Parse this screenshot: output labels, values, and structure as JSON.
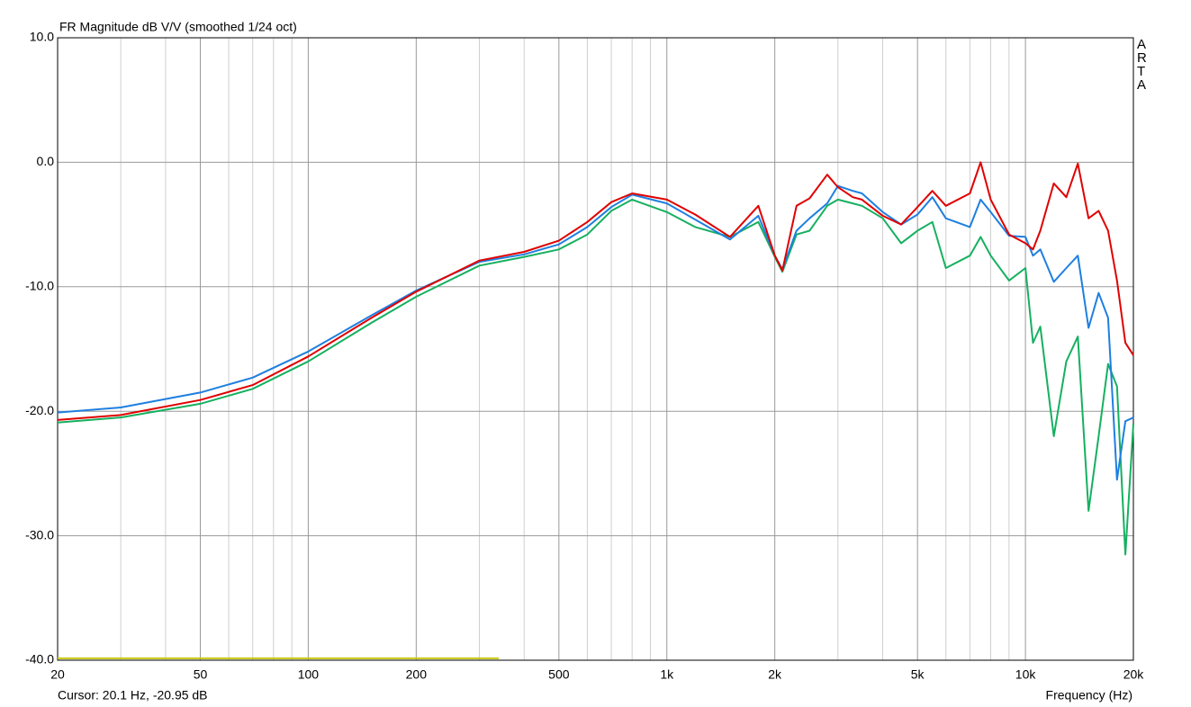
{
  "chart_data": {
    "type": "line",
    "title": "FR Magnitude dB V/V (smoothed 1/24 oct)",
    "watermark": "ARTA",
    "cursor_text": "Cursor: 20.1 Hz, -20.95 dB",
    "x_label": "Frequency (Hz)",
    "log_x": true,
    "grid": true,
    "xlim": [
      20,
      20000
    ],
    "ylim": [
      -40,
      10
    ],
    "xticks": [
      20,
      50,
      100,
      200,
      500,
      {
        "value": 1000,
        "label": "1k"
      },
      {
        "value": 2000,
        "label": "2k"
      },
      {
        "value": 5000,
        "label": "5k"
      },
      {
        "value": 10000,
        "label": "10k"
      },
      {
        "value": 20000,
        "label": "20k"
      }
    ],
    "xminorticks": [
      30,
      40,
      60,
      70,
      80,
      90,
      300,
      400,
      600,
      700,
      800,
      900,
      3000,
      4000,
      6000,
      7000,
      8000,
      9000
    ],
    "yticks": [
      {
        "value": 10,
        "label": "10.0"
      },
      {
        "value": 0,
        "label": "0.0"
      },
      {
        "value": -10,
        "label": "-10.0"
      },
      {
        "value": -20,
        "label": "-20.0"
      },
      {
        "value": -30,
        "label": "-30.0"
      },
      {
        "value": -40,
        "label": "-40.0"
      }
    ],
    "x": [
      20,
      30,
      50,
      70,
      100,
      150,
      200,
      300,
      400,
      500,
      600,
      700,
      800,
      1000,
      1200,
      1500,
      1800,
      2000,
      2100,
      2300,
      2500,
      2800,
      3000,
      3300,
      3500,
      4000,
      4500,
      5000,
      5500,
      6000,
      7000,
      7500,
      8000,
      9000,
      10000,
      10500,
      11000,
      12000,
      13000,
      14000,
      15000,
      16000,
      17000,
      18000,
      19000,
      20000
    ],
    "series": [
      {
        "color": "#16b060",
        "values": [
          -20.9,
          -20.5,
          -19.4,
          -18.2,
          -16.0,
          -12.9,
          -10.8,
          -8.3,
          -7.6,
          -7.0,
          -5.8,
          -3.9,
          -3.0,
          -4.0,
          -5.2,
          -6.0,
          -4.8,
          -7.6,
          -8.8,
          -5.8,
          -5.5,
          -3.5,
          -3.0,
          -3.3,
          -3.5,
          -4.5,
          -6.5,
          -5.5,
          -4.8,
          -8.5,
          -7.5,
          -6.0,
          -7.5,
          -9.5,
          -8.5,
          -14.5,
          -13.2,
          -22.0,
          -16.0,
          -14.0,
          -28.0,
          -22.0,
          -16.2,
          -18.0,
          -31.5,
          -21.0
        ]
      },
      {
        "color": "#1e7fe0",
        "values": [
          -20.1,
          -19.7,
          -18.5,
          -17.3,
          -15.2,
          -12.3,
          -10.3,
          -8.0,
          -7.4,
          -6.6,
          -5.2,
          -3.6,
          -2.6,
          -3.3,
          -4.6,
          -6.2,
          -4.3,
          -7.5,
          -8.6,
          -5.5,
          -4.5,
          -3.3,
          -1.9,
          -2.3,
          -2.5,
          -4.0,
          -5.0,
          -4.2,
          -2.8,
          -4.5,
          -5.2,
          -3.0,
          -4.0,
          -5.9,
          -6.0,
          -7.5,
          -7.0,
          -9.6,
          -8.5,
          -7.5,
          -13.3,
          -10.5,
          -12.5,
          -25.5,
          -20.8,
          -20.5
        ]
      },
      {
        "color": "#e00000",
        "values": [
          -20.7,
          -20.3,
          -19.1,
          -17.9,
          -15.6,
          -12.5,
          -10.4,
          -7.9,
          -7.2,
          -6.3,
          -4.8,
          -3.2,
          -2.5,
          -3.0,
          -4.2,
          -6.0,
          -3.5,
          -7.5,
          -8.7,
          -3.5,
          -2.9,
          -1.0,
          -2.0,
          -2.8,
          -3.0,
          -4.3,
          -5.0,
          -3.6,
          -2.3,
          -3.5,
          -2.5,
          0.0,
          -3.0,
          -5.8,
          -6.5,
          -7.0,
          -5.5,
          -1.7,
          -2.8,
          -0.1,
          -4.5,
          -3.9,
          -5.5,
          -9.5,
          -14.5,
          -15.5
        ]
      },
      {
        "color": "#c8c810",
        "x": [
          20,
          340
        ],
        "values": [
          -39.85,
          -39.85
        ]
      }
    ]
  }
}
